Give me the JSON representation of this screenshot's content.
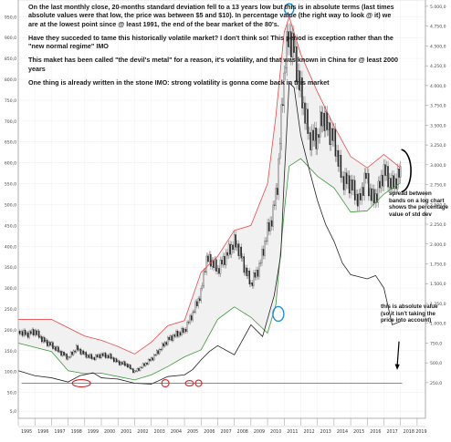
{
  "notes": {
    "main": [
      "On the last monthly close, 20-months standard deviation fell to a 13 years low but this is in absolute terms (last times absolute values were that low, the price was between $5 and $10). In percentage value (the right way to look @ it) we are at the lowest point since @ least 1991, the end of the bear market of the 80's.",
      "Have they succeded to tame this historically volatile market? I don't think so! This period is exception rather than the \"new normal regime\" IMO",
      "This maket has been called \"the devil's metal\" for a reason, it's volatility, and that was known in China for @ least 2000 years",
      "One thing is already written in the stone IMO: strong volatility is gonna come back in this market"
    ],
    "spread": "spread between bands on a log chart shows the percentage value of std dev",
    "absolute": "this is absolute value (so it isn't taking the price into account)"
  },
  "chart_data": {
    "type": "line",
    "x_ticks": [
      "1995",
      "1996",
      "1997",
      "1998",
      "1999",
      "2000",
      "2001",
      "2002",
      "2003",
      "2004",
      "2005",
      "2006",
      "2007",
      "2008",
      "2009",
      "2010",
      "2011",
      "2012",
      "2013",
      "2014",
      "2015",
      "2016",
      "2017",
      "2018",
      "2019"
    ],
    "xlim": [
      1995,
      2019.5
    ],
    "left_axis": {
      "ticks": [
        "5,0",
        "50,0",
        "100,0",
        "150,0",
        "200,0",
        "250,0",
        "300,0",
        "350,0",
        "400,0",
        "450,0",
        "500,0",
        "550,0",
        "600,0",
        "650,0",
        "700,0",
        "750,0",
        "800,0",
        "850,0",
        "900,0",
        "950,0"
      ],
      "ylim": [
        -12,
        990
      ]
    },
    "right_axis": {
      "ticks": [
        "5.000,0",
        "4.750,0",
        "4.500,0",
        "4.250,0",
        "4.000,0",
        "3.750,0",
        "3.500,0",
        "3.250,0",
        "3.000,0",
        "2.750,0",
        "2.500,0",
        "2.250,0",
        "2.000,0",
        "1.750,0",
        "1.500,0",
        "1.250,0",
        "1.000,0",
        "750,0",
        "500,0",
        "250,0"
      ],
      "ylim": [
        -200,
        5080
      ]
    },
    "price": {
      "x": [
        1995.0,
        1995.5,
        1996.0,
        1996.5,
        1997.0,
        1997.5,
        1998.0,
        1998.5,
        1999.0,
        1999.5,
        2000.0,
        2000.5,
        2001.0,
        2001.5,
        2002.0,
        2002.5,
        2003.0,
        2003.5,
        2004.0,
        2004.5,
        2005.0,
        2005.5,
        2006.0,
        2006.3,
        2006.6,
        2007.0,
        2007.5,
        2008.0,
        2008.3,
        2008.6,
        2009.0,
        2009.5,
        2010.0,
        2010.3,
        2010.6,
        2010.9,
        2011.1,
        2011.3,
        2011.6,
        2011.9,
        2012.2,
        2012.5,
        2013.0,
        2013.3,
        2013.6,
        2014.0,
        2014.5,
        2015.0,
        2015.5,
        2015.9,
        2016.3,
        2016.6,
        2017.0,
        2017.5,
        2018.0
      ],
      "y": [
        197,
        189,
        196,
        175,
        163,
        147,
        133,
        156,
        141,
        132,
        140,
        136,
        122,
        117,
        99,
        114,
        130,
        152,
        176,
        189,
        198,
        240,
        288,
        368,
        366,
        343,
        378,
        410,
        391,
        350,
        310,
        350,
        437,
        472,
        553,
        755,
        860,
        905,
        870,
        790,
        730,
        660,
        660,
        715,
        685,
        655,
        560,
        550,
        505,
        570,
        512,
        525,
        582,
        545,
        576
      ]
    },
    "bands": {
      "x": [
        1995,
        1997,
        1998,
        1999,
        2000,
        2001,
        2002,
        2003,
        2004,
        2005,
        2006,
        2007,
        2008,
        2009,
        2010,
        2010.5,
        2011,
        2011.3,
        2012,
        2013,
        2014,
        2015,
        2016,
        2017,
        2018
      ],
      "upper": [
        225,
        225,
        205,
        185,
        175,
        160,
        142,
        170,
        210,
        222,
        338,
        376,
        438,
        450,
        550,
        712,
        912,
        950,
        860,
        770,
        688,
        615,
        588,
        620,
        588
      ],
      "lower": [
        168,
        148,
        102,
        95,
        96,
        88,
        80,
        92,
        112,
        135,
        152,
        225,
        255,
        230,
        192,
        260,
        482,
        592,
        610,
        568,
        540,
        482,
        485,
        525,
        552
      ]
    },
    "std_dev": {
      "x": [
        1995,
        1996,
        1997,
        1998,
        1998.7,
        1999.5,
        2000,
        2001,
        2002,
        2003,
        2004,
        2005,
        2005.5,
        2006,
        2006.5,
        2007,
        2008,
        2009,
        2009.7,
        2010.1,
        2010.4,
        2010.8,
        2011,
        2011.3,
        2011.6,
        2012,
        2012.5,
        2013,
        2013.5,
        2014,
        2014.5,
        2015,
        2016,
        2016.5,
        2017,
        2017.5,
        2018
      ],
      "y": [
        102,
        90,
        85,
        75,
        90,
        97,
        85,
        82,
        72,
        70,
        88,
        92,
        105,
        128,
        148,
        162,
        140,
        212,
        184,
        240,
        282,
        380,
        560,
        792,
        780,
        665,
        585,
        510,
        452,
        412,
        360,
        332,
        322,
        330,
        300,
        212,
        220
      ]
    },
    "reference_line": 72
  }
}
